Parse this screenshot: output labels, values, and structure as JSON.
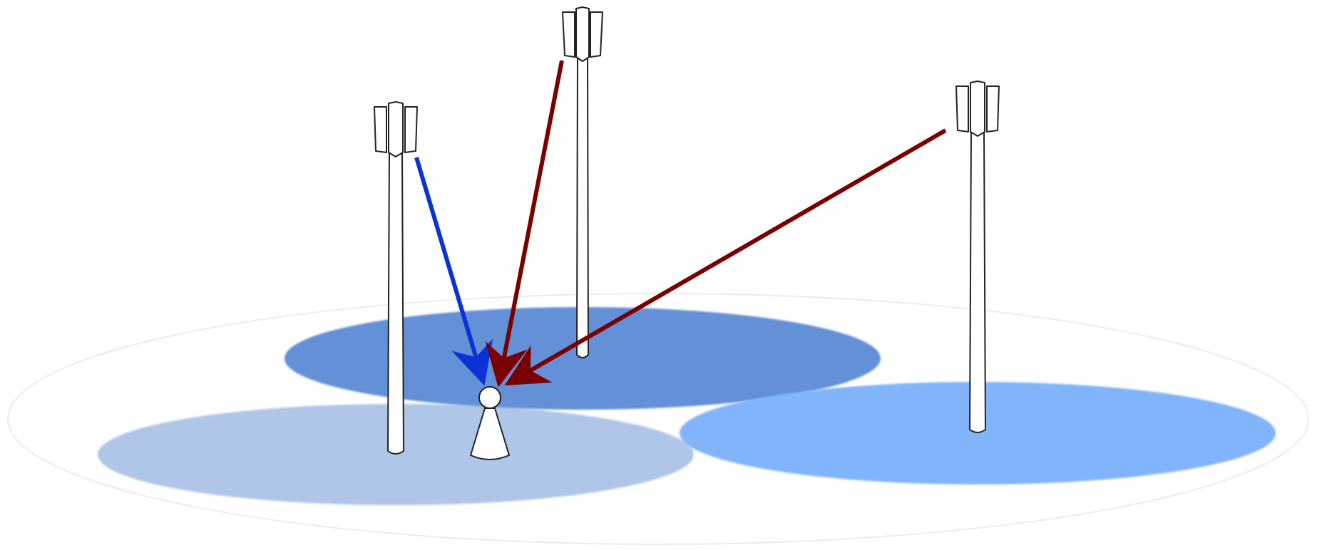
{
  "diagram": {
    "colors": {
      "background": "#ffffff",
      "ground_outline": "#ececec",
      "coverage_serving": "#b0c6e8",
      "coverage_center": "#6390d6",
      "coverage_right": "#82b4fb",
      "serving_link": "#0a33d6",
      "interfering_link": "#7a0000",
      "tower_fill": "#ffffff",
      "tower_stroke": "#222222"
    },
    "icons": {
      "tower": "cell-tower-icon",
      "user": "mobile-user-icon"
    },
    "towers": [
      {
        "id": "left",
        "role": "serving"
      },
      {
        "id": "center",
        "role": "interfering"
      },
      {
        "id": "right",
        "role": "interfering"
      }
    ],
    "links": [
      {
        "from": "left",
        "role": "serving"
      },
      {
        "from": "center",
        "role": "interfering"
      },
      {
        "from": "right",
        "role": "interfering"
      }
    ]
  }
}
